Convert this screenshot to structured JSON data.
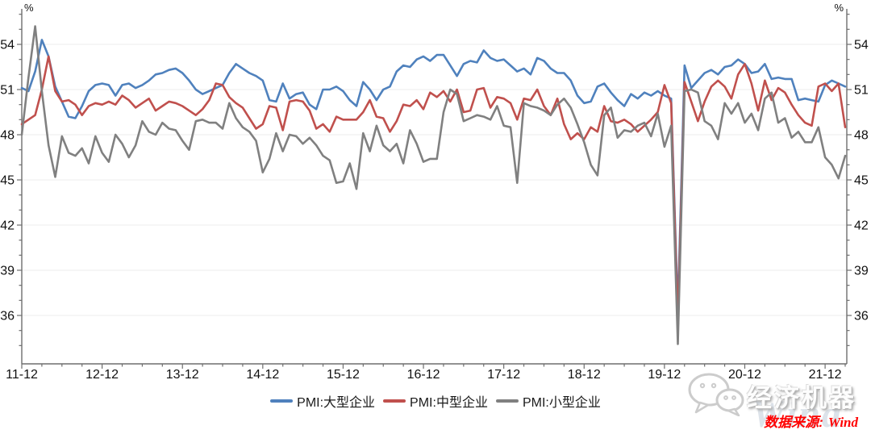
{
  "footer": {
    "source_label": "数据来源:",
    "source_name": "Wind"
  },
  "watermark": {
    "brand": "经济机器",
    "wind_text": "Wind",
    "icon": "wechat-icon"
  },
  "colors": {
    "axis": "#6e6e6e",
    "tick_label": "#111111",
    "gridline": "#ececec",
    "large": "#4F81BD",
    "medium": "#C0504D",
    "small": "#808080",
    "source_text": "#ff0000",
    "watermark_text": "#fdfdfd"
  },
  "chart_data": {
    "type": "line",
    "title": "",
    "y_unit": "%",
    "percent_symbol": "%",
    "grid": "horizontal-faint",
    "legend_position": "bottom-center",
    "ylim": [
      33,
      56.4
    ],
    "y_ticks": [
      36,
      39,
      42,
      45,
      48,
      51,
      54
    ],
    "y_minor_step": 1,
    "x_minor_step_months": 3,
    "x_axis_tick_labels": [
      "11-12",
      "12-12",
      "13-12",
      "14-12",
      "15-12",
      "16-12",
      "17-12",
      "18-12",
      "19-12",
      "20-12",
      "21-12"
    ],
    "x": [
      "2011-12",
      "2012-01",
      "2012-02",
      "2012-03",
      "2012-04",
      "2012-05",
      "2012-06",
      "2012-07",
      "2012-08",
      "2012-09",
      "2012-10",
      "2012-11",
      "2012-12",
      "2013-01",
      "2013-02",
      "2013-03",
      "2013-04",
      "2013-05",
      "2013-06",
      "2013-07",
      "2013-08",
      "2013-09",
      "2013-10",
      "2013-11",
      "2013-12",
      "2014-01",
      "2014-02",
      "2014-03",
      "2014-04",
      "2014-05",
      "2014-06",
      "2014-07",
      "2014-08",
      "2014-09",
      "2014-10",
      "2014-11",
      "2014-12",
      "2015-01",
      "2015-02",
      "2015-03",
      "2015-04",
      "2015-05",
      "2015-06",
      "2015-07",
      "2015-08",
      "2015-09",
      "2015-10",
      "2015-11",
      "2015-12",
      "2016-01",
      "2016-02",
      "2016-03",
      "2016-04",
      "2016-05",
      "2016-06",
      "2016-07",
      "2016-08",
      "2016-09",
      "2016-10",
      "2016-11",
      "2016-12",
      "2017-01",
      "2017-02",
      "2017-03",
      "2017-04",
      "2017-05",
      "2017-06",
      "2017-07",
      "2017-08",
      "2017-09",
      "2017-10",
      "2017-11",
      "2017-12",
      "2018-01",
      "2018-02",
      "2018-03",
      "2018-04",
      "2018-05",
      "2018-06",
      "2018-07",
      "2018-08",
      "2018-09",
      "2018-10",
      "2018-11",
      "2018-12",
      "2019-01",
      "2019-02",
      "2019-03",
      "2019-04",
      "2019-05",
      "2019-06",
      "2019-07",
      "2019-08",
      "2019-09",
      "2019-10",
      "2019-11",
      "2019-12",
      "2020-01",
      "2020-02",
      "2020-03",
      "2020-04",
      "2020-05",
      "2020-06",
      "2020-07",
      "2020-08",
      "2020-09",
      "2020-10",
      "2020-11",
      "2020-12",
      "2021-01",
      "2021-02",
      "2021-03",
      "2021-04",
      "2021-05",
      "2021-06",
      "2021-07",
      "2021-08",
      "2021-09",
      "2021-10",
      "2021-11",
      "2021-12",
      "2022-01",
      "2022-02",
      "2022-03"
    ],
    "series": [
      {
        "name": "PMI:大型企业",
        "color": "#4F81BD",
        "values": [
          51.1,
          50.9,
          52.2,
          54.3,
          53.2,
          51.2,
          50.2,
          49.2,
          49.1,
          49.9,
          50.9,
          51.3,
          51.4,
          51.3,
          50.6,
          51.3,
          51.4,
          51.1,
          51.3,
          51.6,
          52.0,
          52.1,
          52.3,
          52.4,
          52.1,
          51.6,
          51.0,
          50.7,
          50.9,
          51.1,
          51.3,
          52.1,
          52.7,
          52.4,
          52.1,
          51.9,
          51.6,
          50.3,
          50.2,
          51.4,
          50.4,
          50.7,
          50.8,
          50.0,
          49.7,
          51.0,
          51.0,
          51.2,
          50.9,
          50.3,
          49.9,
          51.5,
          51.0,
          50.3,
          51.0,
          51.2,
          52.2,
          52.6,
          52.5,
          53.0,
          53.2,
          52.9,
          53.3,
          53.3,
          52.6,
          51.9,
          52.7,
          52.9,
          52.8,
          53.6,
          53.1,
          52.9,
          53.0,
          52.6,
          52.2,
          52.4,
          52.0,
          53.1,
          52.9,
          52.4,
          52.1,
          52.1,
          51.6,
          50.6,
          50.1,
          50.2,
          51.2,
          51.4,
          50.8,
          50.3,
          49.9,
          50.7,
          50.4,
          50.8,
          50.6,
          50.9,
          50.6,
          50.4,
          36.3,
          52.6,
          51.1,
          51.6,
          52.1,
          52.3,
          52.0,
          52.5,
          52.6,
          53.0,
          52.7,
          52.1,
          52.2,
          52.7,
          51.7,
          51.8,
          51.7,
          51.7,
          50.3,
          50.4,
          50.3,
          50.2,
          51.3,
          51.6,
          51.4,
          51.2
        ]
      },
      {
        "name": "PMI:中型企业",
        "color": "#C0504D",
        "values": [
          48.7,
          49.0,
          49.3,
          51.0,
          53.2,
          50.9,
          50.2,
          50.3,
          50.0,
          49.3,
          49.9,
          50.1,
          50.0,
          50.2,
          50.0,
          50.6,
          50.3,
          49.8,
          50.1,
          50.4,
          49.6,
          49.9,
          50.2,
          50.1,
          49.9,
          49.6,
          49.3,
          49.7,
          50.3,
          51.4,
          51.3,
          50.5,
          50.1,
          49.8,
          49.1,
          48.4,
          48.7,
          49.9,
          49.8,
          48.3,
          50.2,
          50.3,
          50.2,
          49.6,
          48.4,
          48.7,
          48.2,
          49.2,
          49.0,
          49.0,
          49.0,
          49.5,
          50.3,
          49.2,
          49.1,
          48.2,
          48.9,
          50.0,
          49.9,
          50.3,
          49.7,
          50.8,
          50.5,
          50.9,
          50.2,
          51.0,
          49.5,
          49.6,
          51.0,
          51.1,
          49.8,
          50.5,
          50.4,
          50.1,
          49.0,
          50.4,
          50.3,
          51.0,
          49.9,
          49.3,
          50.4,
          48.7,
          47.7,
          48.1,
          47.7,
          48.5,
          48.2,
          49.9,
          48.9,
          48.8,
          49.0,
          48.7,
          48.2,
          48.6,
          49.0,
          49.5,
          51.3,
          50.1,
          35.5,
          51.5,
          50.2,
          48.9,
          50.2,
          51.2,
          51.6,
          51.2,
          50.4,
          52.0,
          52.7,
          51.4,
          49.6,
          51.6,
          50.3,
          51.1,
          50.8,
          50.0,
          49.3,
          48.8,
          48.6,
          51.2,
          51.4,
          50.9,
          51.4,
          48.5
        ]
      },
      {
        "name": "PMI:小型企业",
        "color": "#808080",
        "values": [
          48.0,
          51.8,
          55.2,
          50.9,
          47.3,
          45.2,
          47.9,
          46.8,
          46.6,
          47.1,
          46.1,
          47.9,
          46.8,
          46.2,
          48.0,
          47.4,
          46.5,
          47.3,
          48.9,
          48.2,
          48.0,
          48.8,
          48.4,
          48.3,
          47.6,
          47.0,
          48.9,
          49.0,
          48.8,
          48.8,
          48.4,
          50.1,
          49.1,
          48.5,
          48.2,
          47.6,
          45.5,
          46.4,
          48.1,
          46.9,
          48.0,
          47.9,
          47.4,
          47.8,
          47.3,
          46.6,
          46.3,
          44.8,
          44.9,
          46.1,
          44.4,
          48.1,
          46.9,
          48.6,
          47.3,
          46.9,
          47.4,
          46.1,
          48.3,
          47.4,
          46.2,
          46.4,
          46.4,
          49.5,
          51.0,
          50.7,
          48.9,
          49.1,
          49.3,
          49.2,
          49.0,
          49.9,
          48.6,
          48.5,
          44.8,
          50.1,
          49.9,
          49.8,
          49.6,
          49.3,
          50.0,
          50.4,
          49.8,
          48.7,
          47.5,
          46.0,
          45.3,
          49.3,
          49.8,
          47.8,
          48.3,
          48.2,
          48.6,
          48.8,
          47.9,
          49.4,
          47.2,
          48.6,
          34.1,
          50.9,
          51.0,
          50.8,
          48.9,
          48.6,
          47.7,
          50.1,
          49.4,
          50.1,
          48.8,
          49.4,
          48.3,
          50.4,
          50.8,
          48.8,
          49.1,
          47.8,
          48.2,
          47.5,
          47.5,
          48.5,
          46.5,
          46.0,
          45.1,
          46.6
        ]
      }
    ]
  }
}
